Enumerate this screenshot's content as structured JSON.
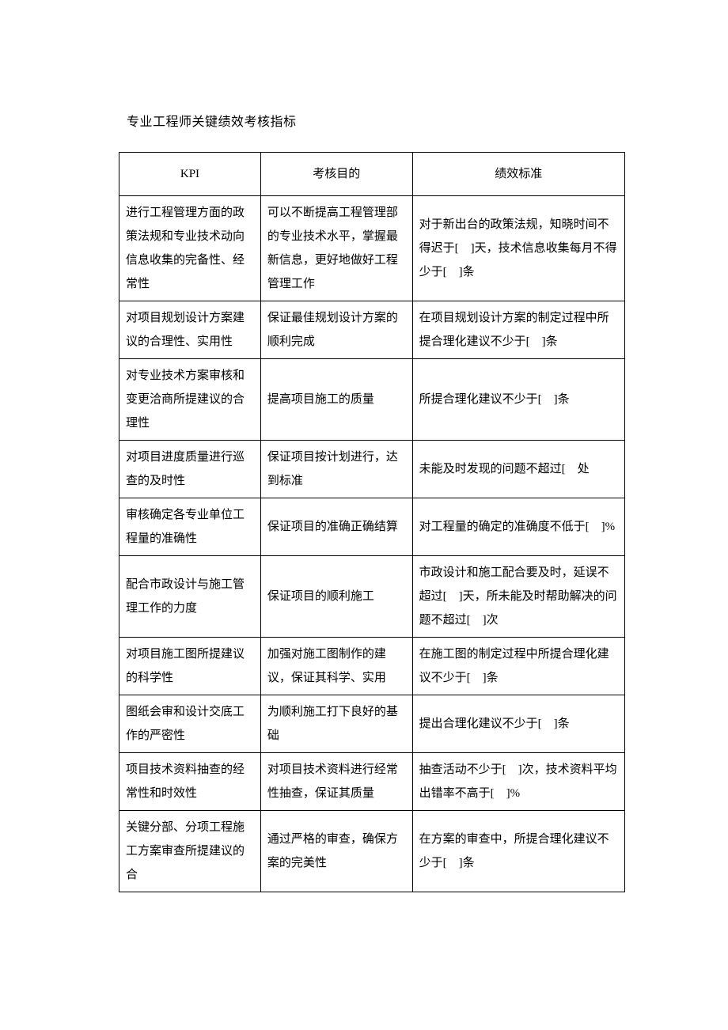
{
  "title": "专业工程师关键绩效考核指标",
  "columns": [
    "KPI",
    "考核目的",
    "绩效标准"
  ],
  "rows": [
    {
      "kpi": "进行工程管理方面的政策法规和专业技术动向信息收集的完备性、经常性",
      "purpose": "可以不断提高工程管理部的专业技术水平，掌握最新信息，更好地做好工程管理工作",
      "standard": "对于新出台的政策法规，知晓时间不得迟于[ ]天，技术信息收集每月不得少于[ ]条"
    },
    {
      "kpi": "对项目规划设计方案建议的合理性、实用性",
      "purpose": "保证最佳规划设计方案的顺利完成",
      "standard": "在项目规划设计方案的制定过程中所提合理化建议不少于[ ]条"
    },
    {
      "kpi": "对专业技术方案审核和变更洽商所提建议的合理性",
      "purpose": "提高项目施工的质量",
      "standard": "所提合理化建议不少于[ ]条"
    },
    {
      "kpi": "对项目进度质量进行巡查的及时性",
      "purpose": "保证项目按计划进行，达到标准",
      "standard": "未能及时发现的问题不超过[ 处"
    },
    {
      "kpi": "审核确定各专业单位工程量的准确性",
      "purpose": "保证项目的准确正确结算",
      "standard": "对工程量的确定的准确度不低于[ ]%"
    },
    {
      "kpi": "配合市政设计与施工管理工作的力度",
      "purpose": "保证项目的顺利施工",
      "standard": "市政设计和施工配合要及时，延误不超过[ ]天，所未能及时帮助解决的问题不超过[ ]次"
    },
    {
      "kpi": "对项目施工图所提建议的科学性",
      "purpose": "加强对施工图制作的建议，保证其科学、实用",
      "standard": "在施工图的制定过程中所提合理化建议不少于[ ]条"
    },
    {
      "kpi": "图纸会审和设计交底工作的严密性",
      "purpose": "为顺利施工打下良好的基础",
      "standard": "提出合理化建议不少于[ ]条"
    },
    {
      "kpi": "项目技术资料抽查的经常性和时效性",
      "purpose": "对项目技术资料进行经常性抽查，保证其质量",
      "standard": "抽查活动不少于[ ]次，技术资料平均出错率不高于[ ]%"
    },
    {
      "kpi": "关键分部、分项工程施工方案审查所提建议的合",
      "purpose": "通过严格的审查，确保方案的完美性",
      "standard": "在方案的审查中，所提合理化建议不少于[ ]条"
    }
  ]
}
